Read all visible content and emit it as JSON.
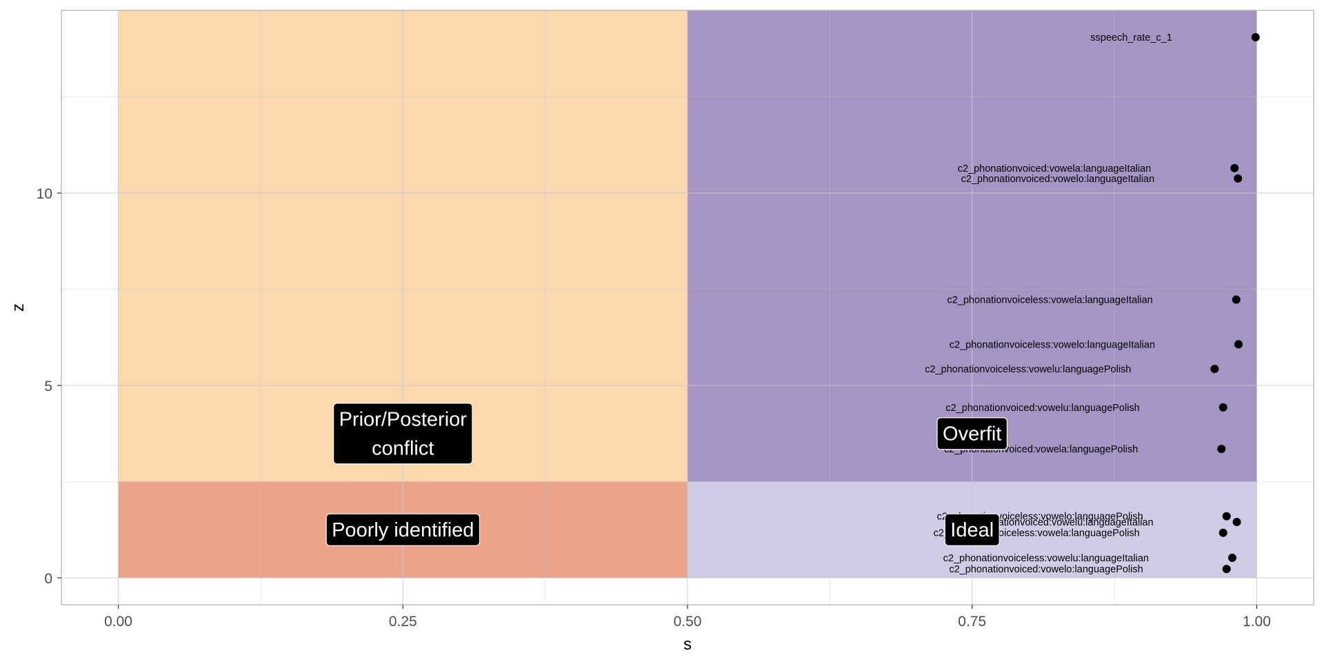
{
  "chart_data": {
    "type": "scatter",
    "xlabel": "s",
    "ylabel": "z",
    "xlim": [
      -0.05,
      1.05
    ],
    "ylim": [
      -0.7,
      14.75
    ],
    "x_ticks": [
      0,
      0.25,
      0.5,
      0.75,
      1
    ],
    "x_tick_labels": [
      "0.00",
      "0.25",
      "0.50",
      "0.75",
      "1.00"
    ],
    "y_ticks": [
      0,
      5,
      10
    ],
    "y_tick_labels": [
      "0",
      "5",
      "10"
    ],
    "grid": true,
    "regions": [
      {
        "label": "Prior/Posterior conflict",
        "lines": [
          "Prior/Posterior",
          "conflict"
        ],
        "x": [
          0,
          0.5
        ],
        "y": [
          2.5,
          14.75
        ],
        "color": "#f9bc78",
        "label_at": [
          0.25,
          3.75
        ]
      },
      {
        "label": "Poorly identified",
        "lines": [
          "Poorly identified"
        ],
        "x": [
          0,
          0.5
        ],
        "y": [
          0,
          2.5
        ],
        "color": "#e0653a",
        "label_at": [
          0.25,
          1.25
        ]
      },
      {
        "label": "Overfit",
        "lines": [
          "Overfit"
        ],
        "x": [
          0.5,
          1
        ],
        "y": [
          2.5,
          14.75
        ],
        "color": "#6a4c9c",
        "label_at": [
          0.75,
          3.75
        ]
      },
      {
        "label": "Ideal",
        "lines": [
          "Ideal"
        ],
        "x": [
          0.5,
          1
        ],
        "y": [
          0,
          2.5
        ],
        "color": "#b2a8d3",
        "label_at": [
          0.75,
          1.25
        ]
      }
    ],
    "points": [
      {
        "label": "sspeech_rate_c_1",
        "x": 0.999,
        "y": 14.05
      },
      {
        "label": "c2_phonationvoiced:vowela:languageItalian",
        "x": 0.9805,
        "y": 10.65
      },
      {
        "label": "c2_phonationvoiced:vowelo:languageItalian",
        "x": 0.9835,
        "y": 10.38
      },
      {
        "label": "c2_phonationvoiceless:vowela:languageItalian",
        "x": 0.982,
        "y": 7.23
      },
      {
        "label": "c2_phonationvoiceless:vowelo:languageItalian",
        "x": 0.984,
        "y": 6.07
      },
      {
        "label": "c2_phonationvoiceless:vowelu:languagePolish",
        "x": 0.963,
        "y": 5.43
      },
      {
        "label": "c2_phonationvoiced:vowelu:languagePolish",
        "x": 0.9705,
        "y": 4.43
      },
      {
        "label": "c2_phonationvoiced:vowela:languagePolish",
        "x": 0.969,
        "y": 3.35
      },
      {
        "label": "c2_phonationvoiceless:vowelo:languagePolish",
        "x": 0.9735,
        "y": 1.6
      },
      {
        "label": "c2_phonationvoiced:vowelu:languageItalian",
        "x": 0.9825,
        "y": 1.45
      },
      {
        "label": "c2_phonationvoiceless:vowela:languagePolish",
        "x": 0.9705,
        "y": 1.17
      },
      {
        "label": "c2_phonationvoiceless:vowelu:languageItalian",
        "x": 0.9785,
        "y": 0.52
      },
      {
        "label": "c2_phonationvoiced:vowelo:languagePolish",
        "x": 0.9735,
        "y": 0.23
      }
    ]
  }
}
